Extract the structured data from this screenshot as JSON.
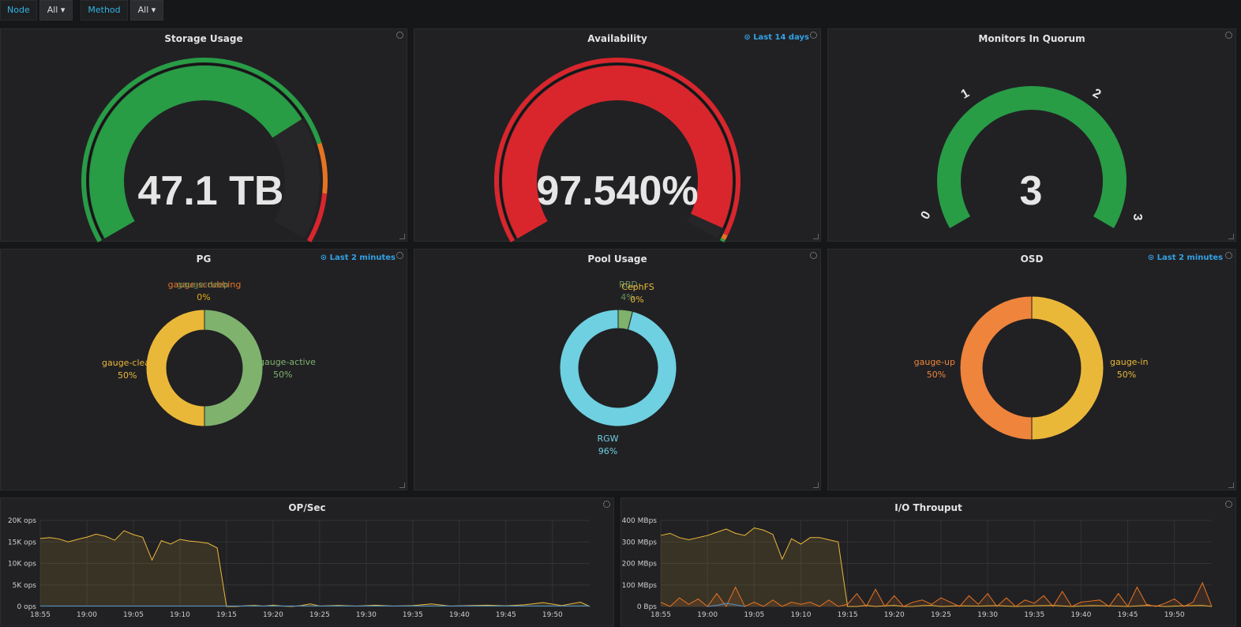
{
  "variables": [
    {
      "label": "Node",
      "value": "All ▾"
    },
    {
      "label": "Method",
      "value": "All ▾"
    }
  ],
  "panels": {
    "storage": {
      "title": "Storage Usage",
      "value": "47.1 TB",
      "fraction": 0.74
    },
    "availability": {
      "title": "Availability",
      "time": "⊙ Last 14 days",
      "value": "97.540%",
      "fraction": 0.9754
    },
    "monitors": {
      "title": "Monitors In Quorum",
      "value": "3",
      "ticks": [
        "0",
        "1",
        "2",
        "3"
      ]
    },
    "pg": {
      "title": "PG",
      "time": "⊙ Last 2 minutes",
      "slices": [
        {
          "name": "gauge-active",
          "pct": "50%",
          "value": 50,
          "color": "#7eb26d"
        },
        {
          "name": "gauge-clean",
          "pct": "50%",
          "value": 50,
          "color": "#eab839"
        }
      ],
      "top_labels": [
        "gauge-scrubbing",
        "gauge-deep",
        "0%"
      ]
    },
    "pool": {
      "title": "Pool Usage",
      "slices": [
        {
          "name": "RBD",
          "pct": "4%",
          "value": 4,
          "color": "#7eb26d"
        },
        {
          "name": "CephFS",
          "pct": "0%",
          "value": 0,
          "color": "#eab839"
        },
        {
          "name": "RGW",
          "pct": "96%",
          "value": 96,
          "color": "#6ed0e0"
        }
      ]
    },
    "osd": {
      "title": "OSD",
      "time": "⊙ Last 2 minutes",
      "slices": [
        {
          "name": "gauge-in",
          "pct": "50%",
          "value": 50,
          "color": "#eab839"
        },
        {
          "name": "gauge-up",
          "pct": "50%",
          "value": 50,
          "color": "#ef843c"
        }
      ]
    },
    "ops": {
      "title": "OP/Sec"
    },
    "io": {
      "title": "I/O Throuput"
    }
  },
  "colors": {
    "green": "#299c46",
    "red": "#d9262d",
    "orange": "#e57322",
    "yellow": "#eab839"
  },
  "chart_data": [
    {
      "type": "area",
      "title": "OP/Sec",
      "x_ticks": [
        "18:55",
        "19:00",
        "19:05",
        "19:10",
        "19:15",
        "19:20",
        "19:25",
        "19:30",
        "19:35",
        "19:40",
        "19:45",
        "19:50"
      ],
      "y_ticks": [
        "20K ops",
        "15K ops",
        "10K ops",
        "5K ops",
        "0 ops"
      ],
      "ylim": [
        0,
        20000
      ],
      "xlim_minutes": [
        0,
        59
      ],
      "series": [
        {
          "color": "#eab839",
          "x_minutes": [
            0,
            1,
            2,
            3,
            4,
            5,
            6,
            7,
            8,
            9,
            10,
            11,
            12,
            13,
            14,
            15,
            16,
            17,
            18,
            19,
            20,
            21,
            22,
            23,
            24,
            25,
            26,
            27,
            28,
            29,
            30,
            32,
            34,
            36,
            38,
            40,
            42,
            44,
            46,
            48,
            50,
            52,
            54,
            56,
            58,
            59
          ],
          "values": [
            15800,
            16000,
            15700,
            15000,
            15600,
            16100,
            16800,
            16300,
            15400,
            17600,
            16700,
            16100,
            10800,
            15300,
            14500,
            15600,
            15200,
            15000,
            14700,
            13600,
            0,
            0,
            150,
            250,
            100,
            300,
            100,
            0,
            200,
            600,
            100,
            250,
            100,
            300,
            100,
            200,
            600,
            100,
            200,
            300,
            150,
            400,
            900,
            200,
            1000,
            0
          ]
        },
        {
          "color": "#5195ce",
          "x_minutes": [
            0,
            59
          ],
          "values": [
            120,
            120
          ]
        }
      ],
      "grid": true
    },
    {
      "type": "area",
      "title": "I/O Throuput",
      "x_ticks": [
        "18:55",
        "19:00",
        "19:05",
        "19:10",
        "19:15",
        "19:20",
        "19:25",
        "19:30",
        "19:35",
        "19:40",
        "19:45",
        "19:50"
      ],
      "y_ticks": [
        "400 MBps",
        "300 MBps",
        "200 MBps",
        "100 MBps",
        "0 Bps"
      ],
      "ylim": [
        0,
        400
      ],
      "xlim_minutes": [
        0,
        59
      ],
      "series": [
        {
          "color": "#eab839",
          "x_minutes": [
            0,
            1,
            2,
            3,
            4,
            5,
            6,
            7,
            8,
            9,
            10,
            11,
            12,
            13,
            14,
            15,
            16,
            17,
            18,
            19,
            20,
            21,
            22,
            23,
            24,
            25,
            26,
            27,
            28,
            29,
            30,
            32,
            34,
            36,
            38,
            40,
            42,
            44,
            46,
            48,
            50,
            52,
            54,
            56,
            58,
            59
          ],
          "values": [
            330,
            340,
            320,
            310,
            320,
            330,
            345,
            360,
            340,
            330,
            365,
            355,
            335,
            220,
            315,
            290,
            320,
            320,
            310,
            300,
            0,
            0,
            5,
            0,
            3,
            5,
            0,
            0,
            4,
            5,
            0,
            3,
            2,
            4,
            0,
            3,
            5,
            0,
            4,
            3,
            0,
            5,
            0,
            3,
            5,
            0
          ]
        },
        {
          "color": "#e57322",
          "x_minutes": [
            0,
            1,
            2,
            3,
            4,
            5,
            6,
            7,
            8,
            9,
            10,
            11,
            12,
            13,
            14,
            15,
            16,
            17,
            18,
            19,
            20,
            21,
            22,
            23,
            24,
            25,
            26,
            27,
            28,
            29,
            30,
            31,
            32,
            33,
            34,
            35,
            36,
            37,
            38,
            39,
            40,
            41,
            42,
            43,
            44,
            45,
            46,
            47,
            48,
            49,
            50,
            51,
            52,
            53,
            54,
            55,
            56,
            57,
            58,
            59
          ],
          "values": [
            20,
            0,
            40,
            10,
            35,
            0,
            60,
            0,
            90,
            0,
            20,
            0,
            30,
            0,
            20,
            10,
            20,
            0,
            30,
            0,
            10,
            60,
            0,
            80,
            0,
            50,
            0,
            20,
            30,
            10,
            40,
            20,
            0,
            50,
            10,
            60,
            0,
            40,
            0,
            30,
            15,
            50,
            0,
            70,
            0,
            20,
            25,
            30,
            0,
            60,
            0,
            90,
            10,
            0,
            15,
            35,
            0,
            20,
            110,
            0
          ]
        },
        {
          "color": "#5195ce",
          "x_minutes": [
            5,
            6,
            7,
            8,
            9
          ],
          "values": [
            0,
            5,
            15,
            8,
            0
          ]
        }
      ],
      "grid": true
    }
  ]
}
